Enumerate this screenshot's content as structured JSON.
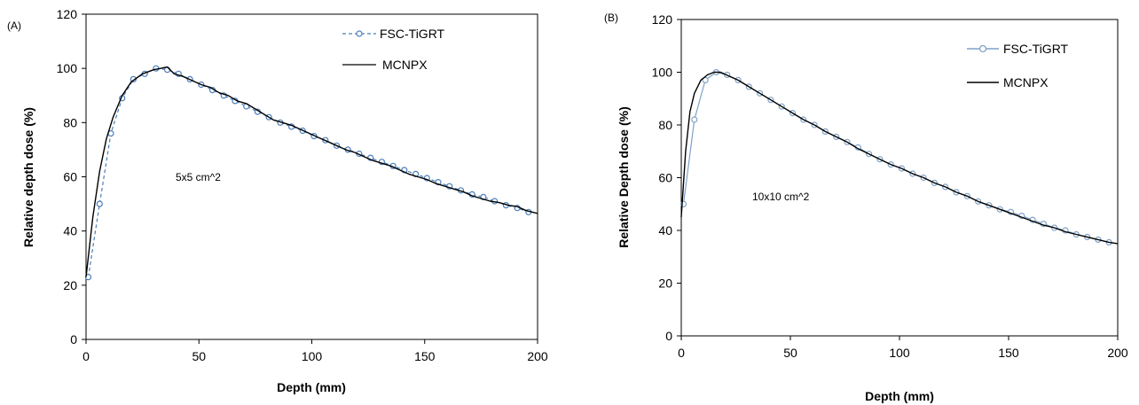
{
  "chart_data": [
    {
      "type": "line",
      "panel_label": "(A)",
      "xlabel": "Depth (mm)",
      "ylabel": "Relative depth dose (%)",
      "xlim": [
        0,
        200
      ],
      "ylim": [
        0,
        120
      ],
      "xticks": [
        0,
        50,
        100,
        150,
        200
      ],
      "yticks": [
        0,
        20,
        40,
        60,
        80,
        100,
        120
      ],
      "annotation": "5x5 cm^2",
      "legend_position": "top-right",
      "series": [
        {
          "name": "FSC-TiGRT",
          "style": "dashed-circle",
          "color": "#4a7ebb",
          "points": [
            [
              1,
              23
            ],
            [
              6,
              50
            ],
            [
              11,
              76
            ],
            [
              16,
              89
            ],
            [
              21,
              96
            ],
            [
              26,
              98
            ],
            [
              31,
              100
            ],
            [
              36,
              99.5
            ],
            [
              41,
              98
            ],
            [
              46,
              96
            ],
            [
              51,
              94
            ],
            [
              56,
              92
            ],
            [
              61,
              90
            ],
            [
              66,
              88
            ],
            [
              71,
              86
            ],
            [
              76,
              84
            ],
            [
              81,
              82
            ],
            [
              86,
              80
            ],
            [
              91,
              78.5
            ],
            [
              96,
              77
            ],
            [
              101,
              75
            ],
            [
              106,
              73.5
            ],
            [
              111,
              71.5
            ],
            [
              116,
              70
            ],
            [
              121,
              68.5
            ],
            [
              126,
              67
            ],
            [
              131,
              65.5
            ],
            [
              136,
              64
            ],
            [
              141,
              62.5
            ],
            [
              146,
              61
            ],
            [
              151,
              59.5
            ],
            [
              156,
              58
            ],
            [
              161,
              56.5
            ],
            [
              166,
              55
            ],
            [
              171,
              53.5
            ],
            [
              176,
              52.5
            ],
            [
              181,
              51
            ],
            [
              186,
              49.5
            ],
            [
              191,
              48.5
            ],
            [
              196,
              47
            ]
          ]
        },
        {
          "name": "MCNPX",
          "style": "solid",
          "color": "#000000",
          "points": [
            [
              0,
              23
            ],
            [
              3,
              45
            ],
            [
              6,
              62
            ],
            [
              9,
              74
            ],
            [
              12,
              82
            ],
            [
              16,
              90
            ],
            [
              20,
              95
            ],
            [
              25,
              98
            ],
            [
              30,
              99.5
            ],
            [
              33,
              100
            ],
            [
              36,
              100.5
            ],
            [
              39,
              98
            ],
            [
              43,
              97
            ],
            [
              47,
              95.5
            ],
            [
              51,
              94
            ],
            [
              55,
              93
            ],
            [
              59,
              91
            ],
            [
              63,
              90
            ],
            [
              67,
              88
            ],
            [
              71,
              87
            ],
            [
              75,
              85
            ],
            [
              79,
              83
            ],
            [
              83,
              81
            ],
            [
              87,
              80
            ],
            [
              91,
              79
            ],
            [
              95,
              77.5
            ],
            [
              99,
              76
            ],
            [
              103,
              74.5
            ],
            [
              107,
              73
            ],
            [
              111,
              71.5
            ],
            [
              115,
              70
            ],
            [
              119,
              69
            ],
            [
              123,
              67.5
            ],
            [
              127,
              66
            ],
            [
              131,
              65
            ],
            [
              135,
              64
            ],
            [
              139,
              62.5
            ],
            [
              143,
              61
            ],
            [
              147,
              60
            ],
            [
              151,
              59
            ],
            [
              155,
              57.5
            ],
            [
              159,
              56.5
            ],
            [
              163,
              55.5
            ],
            [
              167,
              54.5
            ],
            [
              171,
              53
            ],
            [
              175,
              52
            ],
            [
              179,
              51
            ],
            [
              183,
              50.5
            ],
            [
              187,
              49.5
            ],
            [
              191,
              49
            ],
            [
              195,
              47.5
            ],
            [
              200,
              46.5
            ]
          ]
        }
      ]
    },
    {
      "type": "line",
      "panel_label": "(B)",
      "xlabel": "Depth (mm)",
      "ylabel": "Relative Depth dose (%)",
      "xlim": [
        0,
        200
      ],
      "ylim": [
        0,
        120
      ],
      "xticks": [
        0,
        50,
        100,
        150,
        200
      ],
      "yticks": [
        0,
        20,
        40,
        60,
        80,
        100,
        120
      ],
      "annotation": "10x10 cm^2",
      "legend_position": "top-right",
      "series": [
        {
          "name": "FSC-TiGRT",
          "style": "solid-circle",
          "color": "#7fa2c8",
          "points": [
            [
              1,
              50
            ],
            [
              6,
              82
            ],
            [
              11,
              97
            ],
            [
              16,
              100
            ],
            [
              21,
              99
            ],
            [
              26,
              97
            ],
            [
              31,
              94.5
            ],
            [
              36,
              92
            ],
            [
              41,
              89.5
            ],
            [
              46,
              87
            ],
            [
              51,
              84.5
            ],
            [
              56,
              82
            ],
            [
              61,
              80
            ],
            [
              66,
              77.5
            ],
            [
              71,
              75.5
            ],
            [
              76,
              73.5
            ],
            [
              81,
              71.5
            ],
            [
              86,
              69
            ],
            [
              91,
              67
            ],
            [
              96,
              65
            ],
            [
              101,
              63.5
            ],
            [
              106,
              61.5
            ],
            [
              111,
              60
            ],
            [
              116,
              58
            ],
            [
              121,
              56.5
            ],
            [
              126,
              54.5
            ],
            [
              131,
              53
            ],
            [
              136,
              51
            ],
            [
              141,
              49.5
            ],
            [
              146,
              48
            ],
            [
              151,
              47
            ],
            [
              156,
              45.5
            ],
            [
              161,
              44
            ],
            [
              166,
              42.5
            ],
            [
              171,
              41
            ],
            [
              176,
              40
            ],
            [
              181,
              38.5
            ],
            [
              186,
              37.5
            ],
            [
              191,
              36.5
            ],
            [
              196,
              35.5
            ]
          ]
        },
        {
          "name": "MCNPX",
          "style": "solid",
          "color": "#000000",
          "points": [
            [
              0,
              45
            ],
            [
              2,
              70
            ],
            [
              4,
              85
            ],
            [
              6,
              92
            ],
            [
              9,
              97
            ],
            [
              12,
              99
            ],
            [
              15,
              100
            ],
            [
              18,
              100
            ],
            [
              22,
              98.5
            ],
            [
              26,
              97
            ],
            [
              31,
              94.5
            ],
            [
              36,
              92
            ],
            [
              41,
              89.5
            ],
            [
              46,
              87
            ],
            [
              51,
              84.5
            ],
            [
              56,
              82
            ],
            [
              61,
              80
            ],
            [
              66,
              77.5
            ],
            [
              71,
              75.5
            ],
            [
              76,
              73.5
            ],
            [
              81,
              71
            ],
            [
              86,
              69
            ],
            [
              91,
              67
            ],
            [
              96,
              65
            ],
            [
              101,
              63.5
            ],
            [
              106,
              61.5
            ],
            [
              111,
              60
            ],
            [
              116,
              58
            ],
            [
              121,
              56.5
            ],
            [
              126,
              54.5
            ],
            [
              131,
              53
            ],
            [
              136,
              51
            ],
            [
              141,
              49.5
            ],
            [
              146,
              48
            ],
            [
              151,
              46.5
            ],
            [
              156,
              45
            ],
            [
              161,
              43.5
            ],
            [
              166,
              42
            ],
            [
              171,
              41
            ],
            [
              176,
              39.5
            ],
            [
              181,
              38.5
            ],
            [
              186,
              37.5
            ],
            [
              191,
              36.5
            ],
            [
              196,
              35.5
            ],
            [
              200,
              35
            ]
          ]
        }
      ]
    }
  ]
}
